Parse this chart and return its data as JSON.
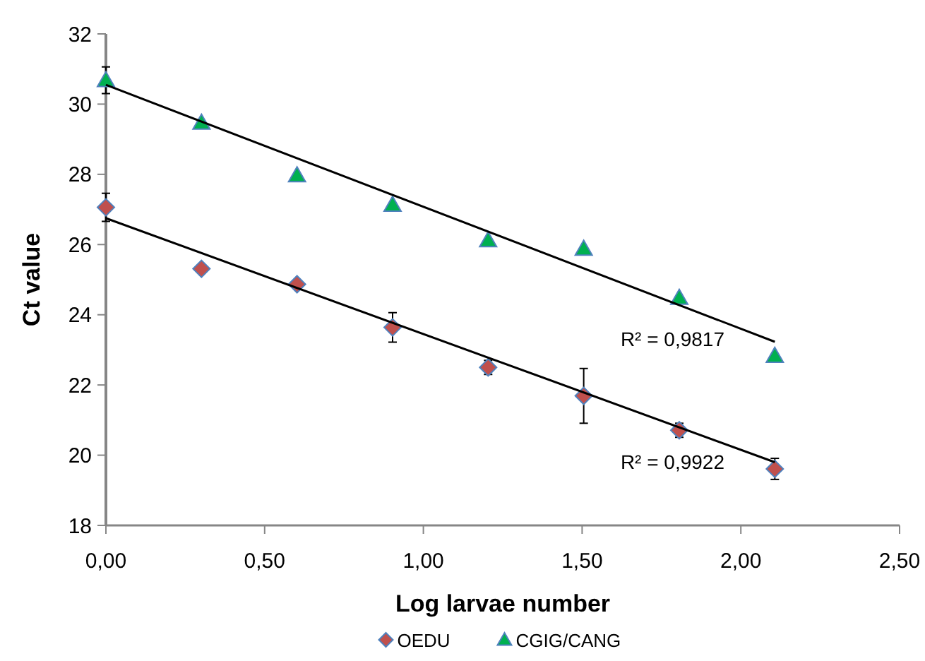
{
  "chart_data": {
    "type": "scatter",
    "xlabel": "Log larvae number",
    "ylabel": "Ct value",
    "xlim": [
      0,
      2.5
    ],
    "xticks": [
      {
        "value": 0,
        "label": "0,00"
      },
      {
        "value": 0.5,
        "label": "0,50"
      },
      {
        "value": 1,
        "label": "1,00"
      },
      {
        "value": 1.5,
        "label": "1,50"
      },
      {
        "value": 2,
        "label": "2,00"
      },
      {
        "value": 2.5,
        "label": "2,50"
      }
    ],
    "ylim": [
      18,
      32
    ],
    "yticks": [
      18,
      20,
      22,
      24,
      26,
      28,
      30,
      32
    ],
    "grid": false,
    "legend": "bottom",
    "series": [
      {
        "name": "OEDU",
        "color": "#c0504d",
        "marker": "diamond",
        "x": [
          0,
          0.301,
          0.602,
          0.903,
          1.204,
          1.505,
          1.806,
          2.107
        ],
        "values": [
          27.06,
          25.31,
          24.87,
          23.64,
          22.5,
          21.69,
          20.71,
          19.61
        ],
        "errors": [
          0.4,
          null,
          null,
          0.42,
          0.2,
          0.78,
          0.2,
          0.3
        ]
      },
      {
        "name": "CGIG/CANG",
        "color": "#00b050",
        "marker": "triangle",
        "x": [
          0,
          0.301,
          0.602,
          0.903,
          1.204,
          1.505,
          1.806,
          2.107
        ],
        "values": [
          30.68,
          29.47,
          27.97,
          27.13,
          26.12,
          25.88,
          24.48,
          22.83
        ],
        "errors": [
          0.38,
          null,
          null,
          null,
          null,
          null,
          null,
          null
        ]
      },
      {
        "type": "line",
        "color": "#000000",
        "x": [
          0,
          2.107
        ],
        "values": [
          26.75,
          19.8
        ]
      },
      {
        "type": "line",
        "color": "#000000",
        "x": [
          0,
          2.107
        ],
        "values": [
          30.55,
          23.23
        ]
      }
    ],
    "annotations": [
      "R² = 0,9817",
      "R² = 0,9922"
    ]
  }
}
